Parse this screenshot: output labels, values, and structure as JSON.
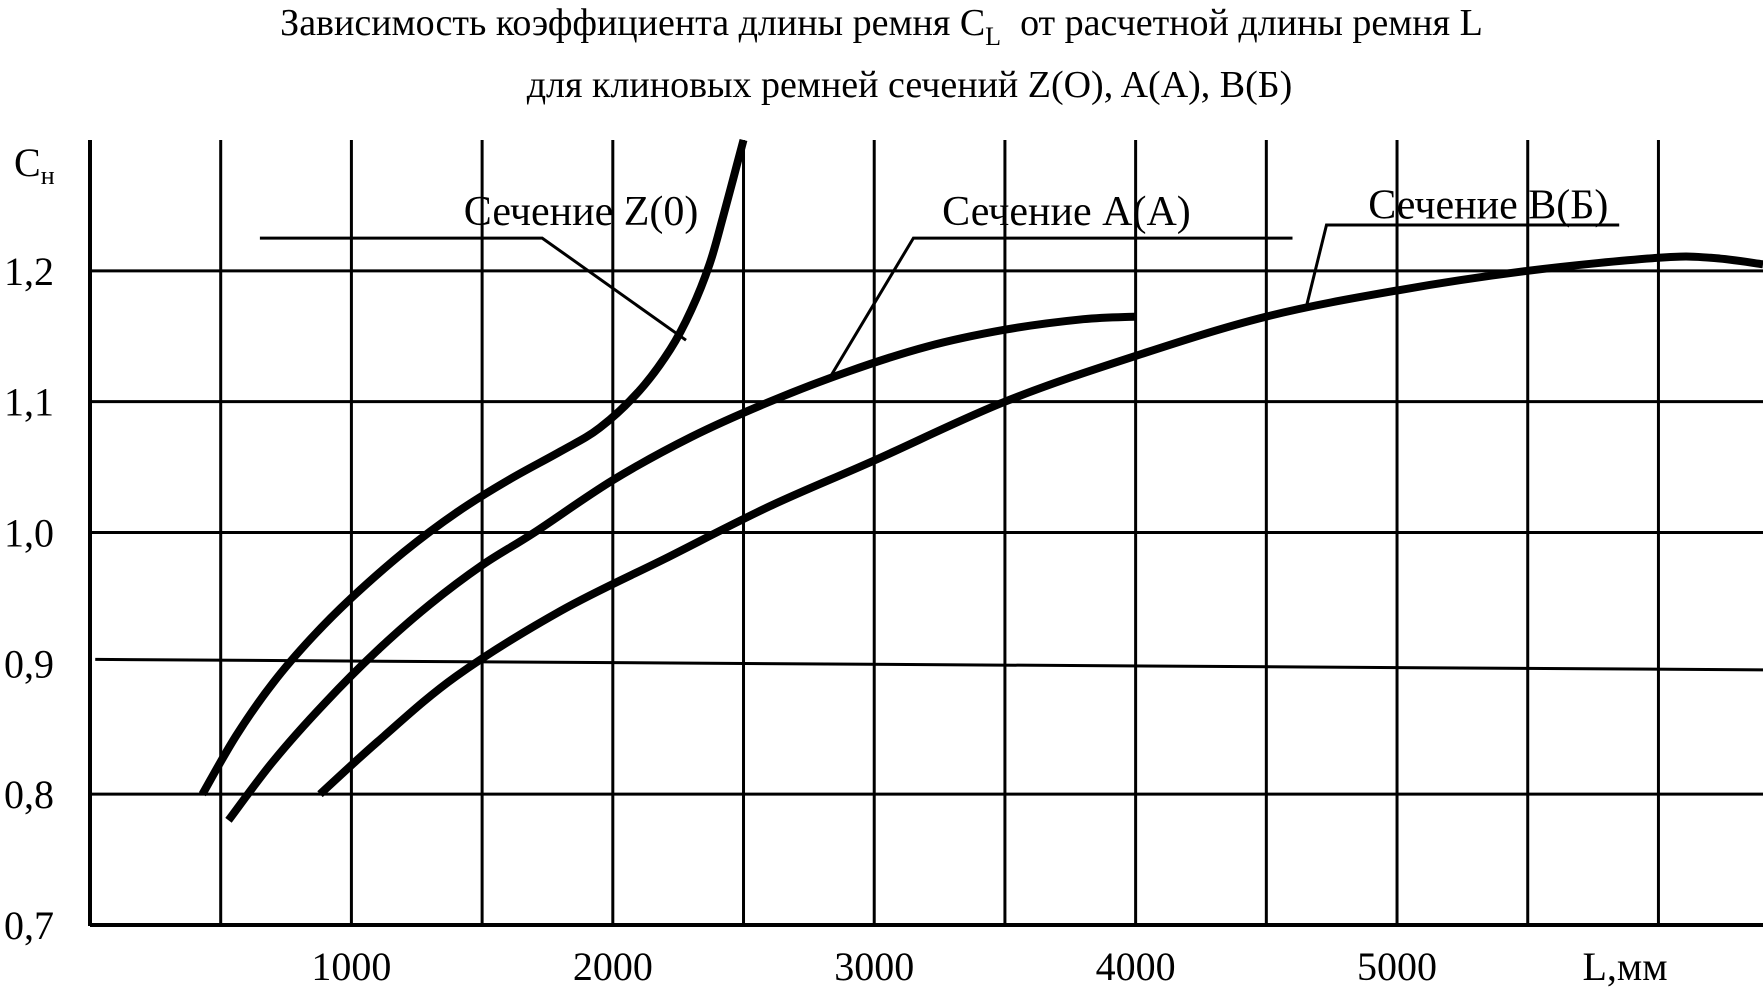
{
  "title": {
    "line1_before": "Зависимость коэффициента длины ремня C",
    "line1_sub": "L",
    "line1_after": "  от расчетной длины ремня L",
    "line2": "для клиновых ремней сечений Z(O), A(A), B(Б)"
  },
  "chart_data": {
    "type": "line",
    "ylabel": "C",
    "ylabel_sub": "н",
    "xlabel": "L,мм",
    "xlim": [
      0,
      6400
    ],
    "ylim": [
      0.7,
      1.3
    ],
    "grid": true,
    "x_ticks": [
      1000,
      2000,
      3000,
      4000,
      5000
    ],
    "x_tick_labels": [
      "1000",
      "2000",
      "3000",
      "4000",
      "5000"
    ],
    "y_ticks": [
      0.7,
      0.8,
      0.9,
      1.0,
      1.1,
      1.2
    ],
    "y_tick_labels": [
      "0,7",
      "0,8",
      "0,9",
      "1,0",
      "1,1",
      "1,2"
    ],
    "series": [
      {
        "name": "Сечение Z(0)",
        "x": [
          430,
          560,
          700,
          850,
          1000,
          1200,
          1400,
          1600,
          1800,
          1950,
          2100,
          2220,
          2300,
          2370,
          2420,
          2460,
          2500
        ],
        "y": [
          0.8,
          0.845,
          0.885,
          0.92,
          0.95,
          0.985,
          1.015,
          1.04,
          1.062,
          1.08,
          1.108,
          1.14,
          1.17,
          1.205,
          1.24,
          1.27,
          1.3
        ]
      },
      {
        "name": "Сечение A(A)",
        "x": [
          530,
          700,
          900,
          1100,
          1300,
          1500,
          1700,
          2000,
          2300,
          2600,
          2900,
          3200,
          3500,
          3800,
          4000
        ],
        "y": [
          0.78,
          0.825,
          0.87,
          0.91,
          0.945,
          0.975,
          1.0,
          1.04,
          1.073,
          1.1,
          1.123,
          1.142,
          1.155,
          1.163,
          1.165
        ]
      },
      {
        "name": "Сечение B(Б)",
        "x": [
          880,
          1100,
          1400,
          1800,
          2200,
          2600,
          3000,
          3500,
          4000,
          4500,
          5000,
          5500,
          6000,
          6200,
          6400
        ],
        "y": [
          0.8,
          0.84,
          0.89,
          0.94,
          0.98,
          1.02,
          1.055,
          1.1,
          1.135,
          1.165,
          1.185,
          1.2,
          1.21,
          1.21,
          1.205
        ]
      }
    ],
    "extra_lines": [
      {
        "x": [
          20,
          6400
        ],
        "y": [
          0.903,
          0.895
        ]
      }
    ],
    "annotations": [
      {
        "text": "Сечение Z(0)",
        "x": 1430,
        "y": 1.235,
        "leader_x": [
          650,
          1730,
          2280
        ],
        "leader_y": [
          1.225,
          1.225,
          1.147
        ]
      },
      {
        "text": "Сечение A(A)",
        "x": 3260,
        "y": 1.235,
        "leader_x": [
          4600,
          3150,
          2820
        ],
        "leader_y": [
          1.225,
          1.225,
          1.115
        ]
      },
      {
        "text": "Сечение B(Б)",
        "x": 4890,
        "y": 1.24,
        "leader_x": [
          5850,
          4730,
          4650
        ],
        "leader_y": [
          1.235,
          1.235,
          1.17
        ]
      }
    ],
    "colors": {
      "line": "#000000",
      "grid": "#000000",
      "background": "#ffffff"
    }
  }
}
